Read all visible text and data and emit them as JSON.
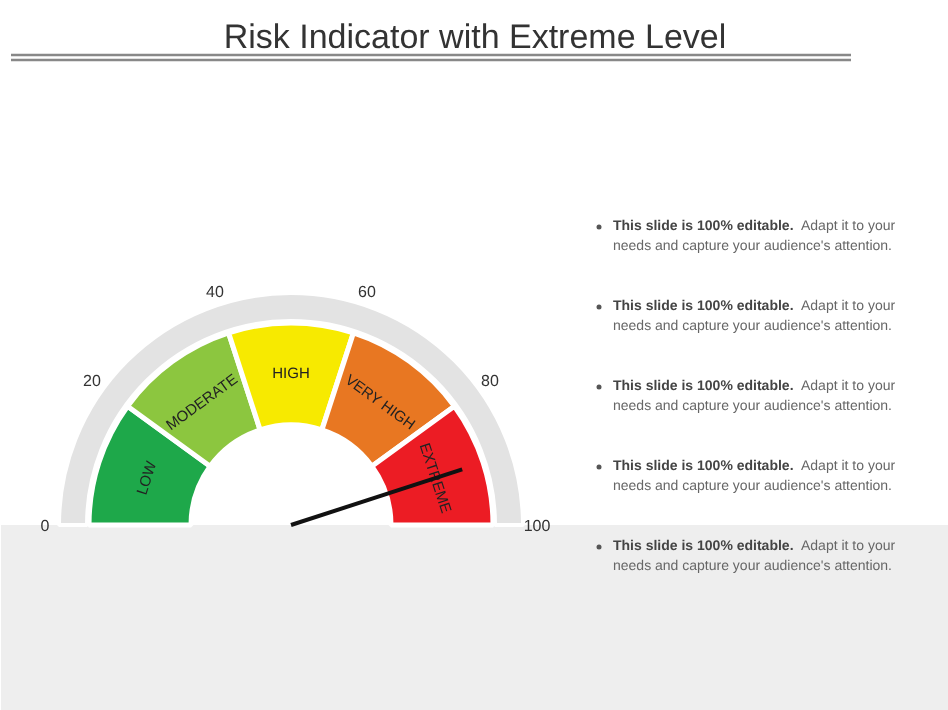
{
  "chart_data": {
    "type": "donut",
    "title": "Risk Indicator with Extreme Level",
    "categories": [
      "LOW",
      "MODERATE",
      "HIGH",
      "VERY HIGH",
      "EXTREME"
    ],
    "values": [
      20,
      20,
      20,
      20,
      20
    ],
    "colors": [
      "#1ea84a",
      "#8cc63f",
      "#f7ea00",
      "#e87722",
      "#ec1c24"
    ],
    "needle": "EXTREME",
    "annotations": [
      "0",
      "20",
      "40",
      "60",
      "80",
      "100",
      "This slide is 100% editable. Adapt it to your needs and capture your audience's attention.",
      "This slide is 100% editable. Adapt it to your needs and capture your audience's attention.",
      "This slide is 100% editable. Adapt it to your needs and capture your audience's attention.",
      "This slide is 100% editable. Adapt it to your needs and capture your audience's attention.",
      "This slide is 100% editable. Adapt it to your needs and capture your audience's attention."
    ]
  }
}
